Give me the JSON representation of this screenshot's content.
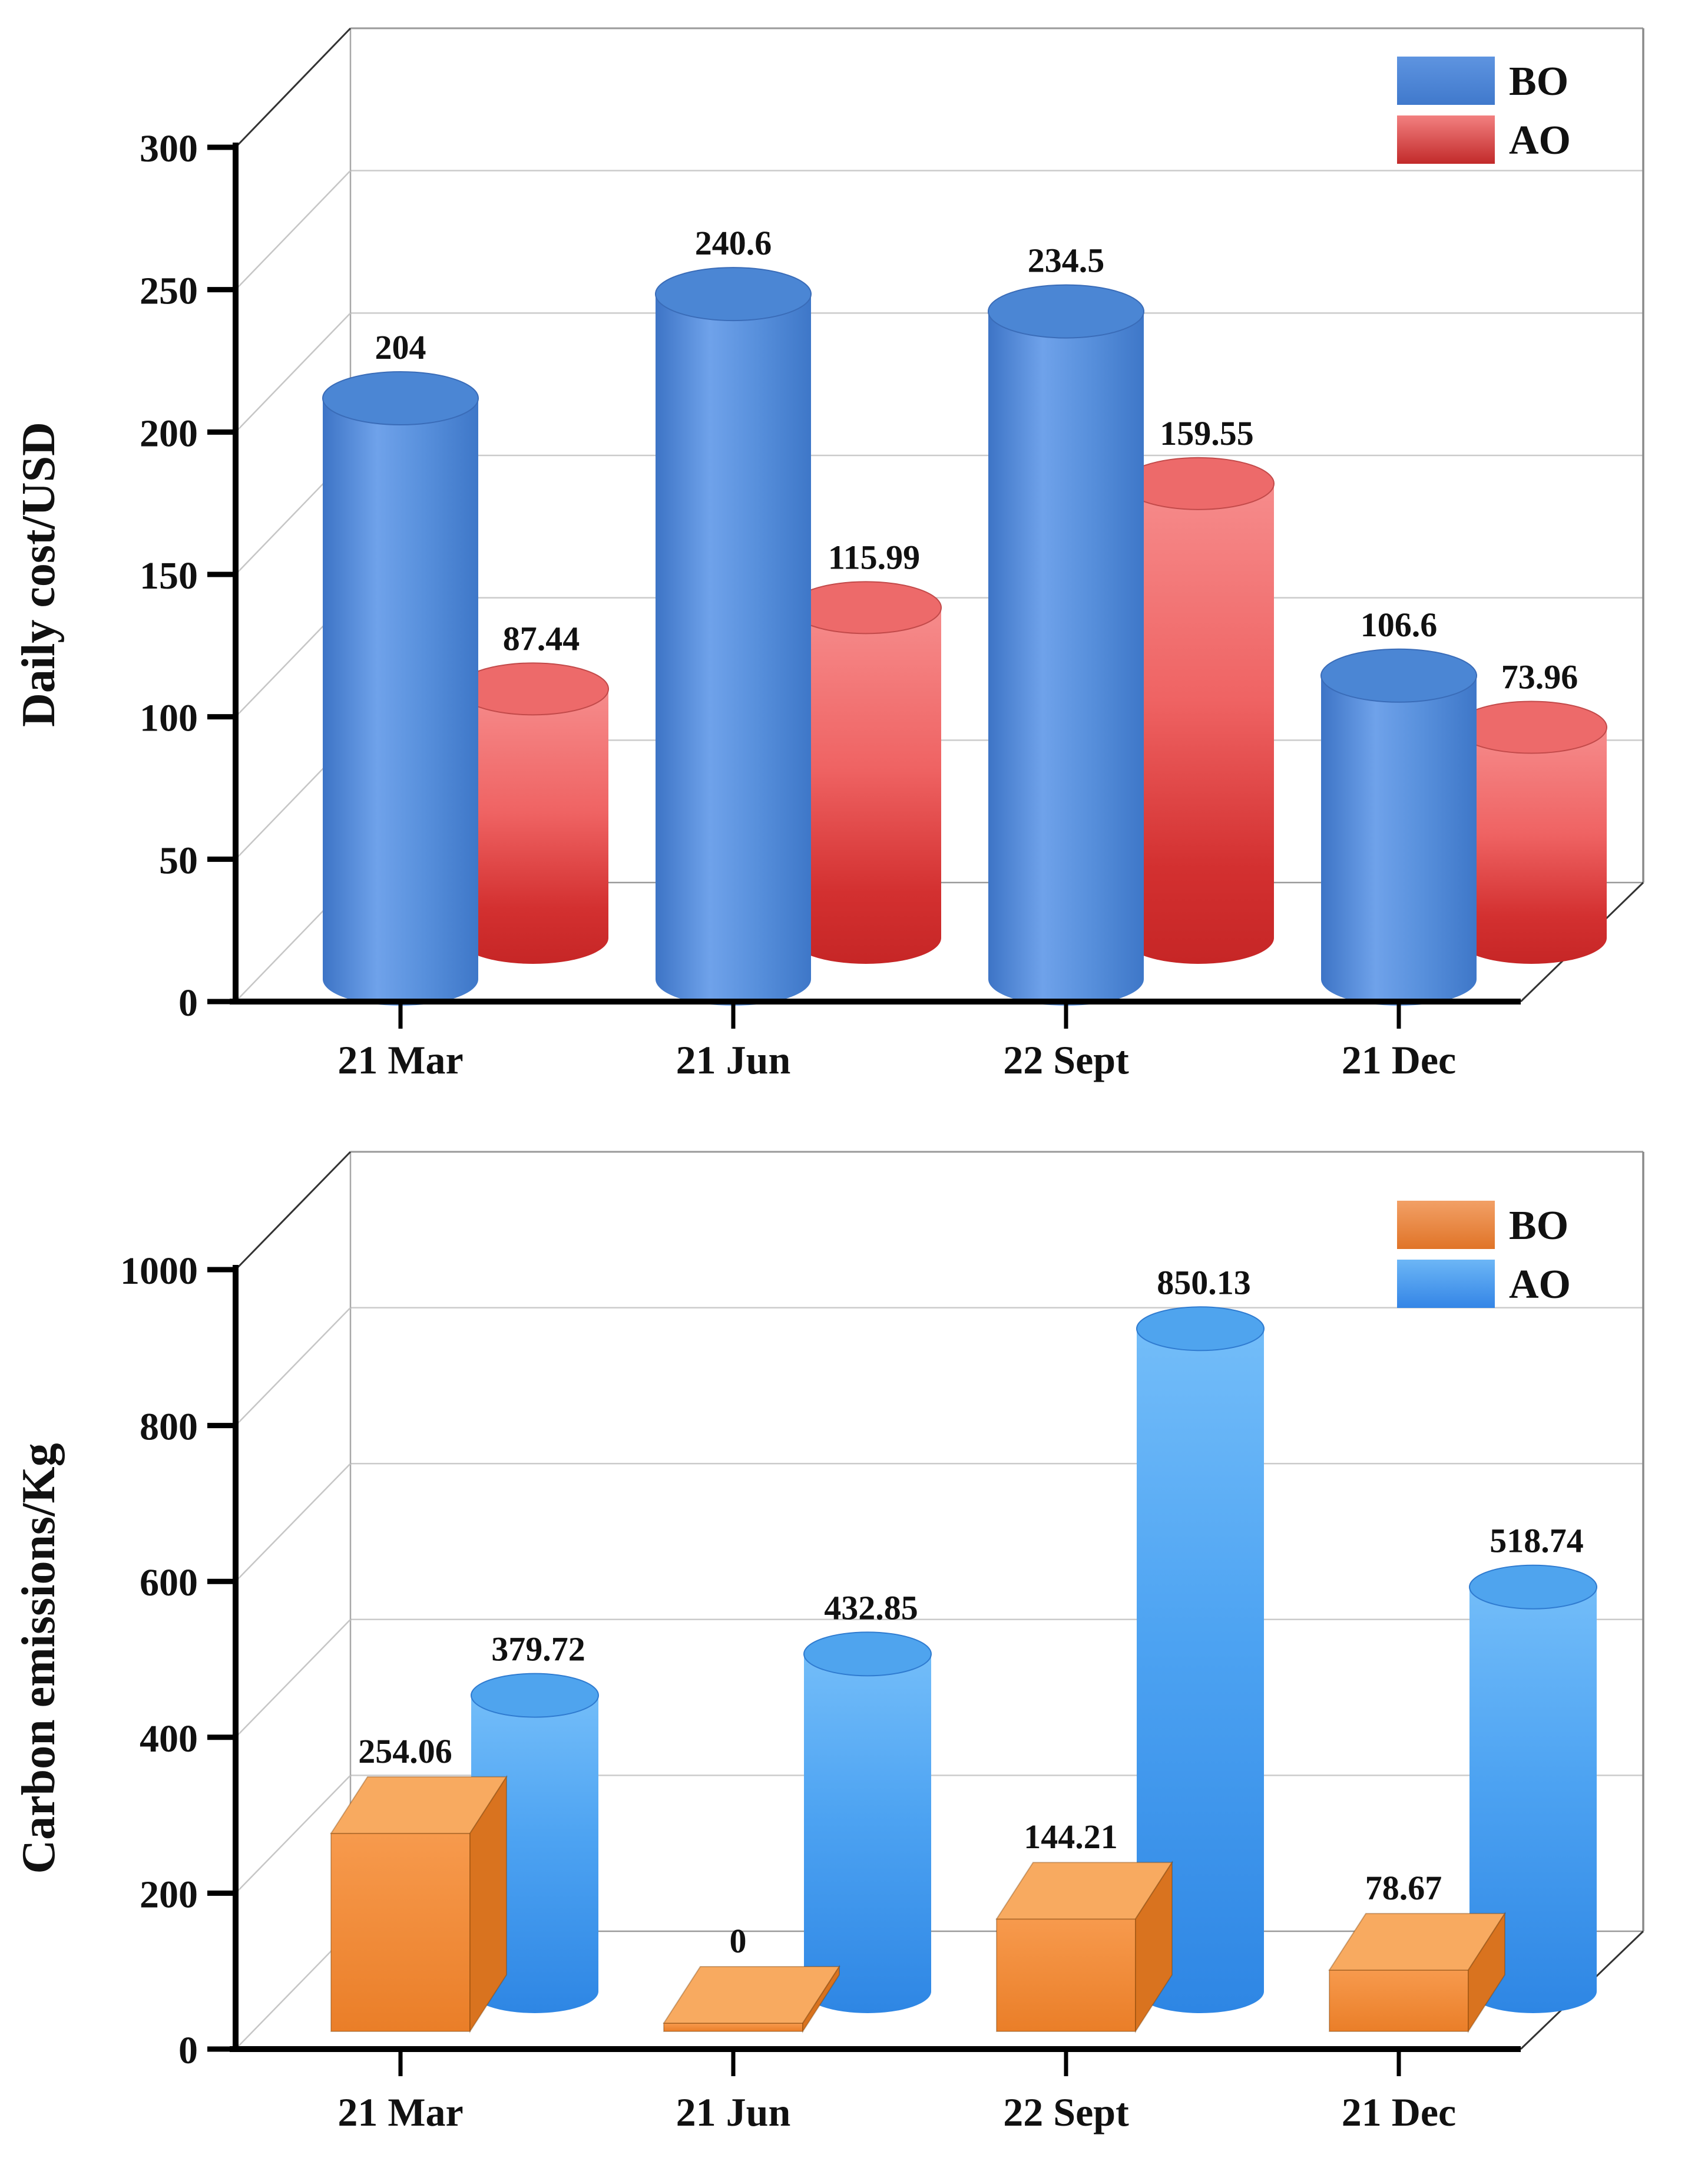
{
  "figure": {
    "background": "#ffffff",
    "panels": 2
  },
  "chart_data": [
    {
      "type": "bar",
      "projection": "3d",
      "ylabel": "Daily cost/USD",
      "categories": [
        "21 Mar",
        "21 Jun",
        "22 Sept",
        "21 Dec"
      ],
      "ylim": [
        0,
        300
      ],
      "yticks": [
        0,
        50,
        100,
        150,
        200,
        250,
        300
      ],
      "grid": true,
      "legend_position": "top-right",
      "series": [
        {
          "name": "BO",
          "shape": "cylinder",
          "color": "#4E8AD8",
          "values": [
            204,
            240.6,
            234.5,
            106.6
          ],
          "value_labels": [
            "204",
            "240.6",
            "234.5",
            "106.6"
          ]
        },
        {
          "name": "AO",
          "shape": "cylinder",
          "color": "#E04A4A",
          "values": [
            87.44,
            115.99,
            159.55,
            73.96
          ],
          "value_labels": [
            "87.44",
            "115.99",
            "159.55",
            "73.96"
          ]
        }
      ]
    },
    {
      "type": "bar",
      "projection": "3d",
      "ylabel": "Carbon emissions/Kg",
      "categories": [
        "21 Mar",
        "21 Jun",
        "22 Sept",
        "21 Dec"
      ],
      "ylim": [
        0,
        1000
      ],
      "yticks": [
        0,
        200,
        400,
        600,
        800,
        1000
      ],
      "grid": true,
      "legend_position": "top-right",
      "series": [
        {
          "name": "BO",
          "shape": "cuboid",
          "color": "#EE8433",
          "values": [
            254.06,
            0,
            144.21,
            78.67
          ],
          "value_labels": [
            "254.06",
            "0",
            "144.21",
            "78.67"
          ]
        },
        {
          "name": "AO",
          "shape": "cylinder",
          "color": "#3E97EE",
          "values": [
            379.72,
            432.85,
            850.13,
            518.74
          ],
          "value_labels": [
            "379.72",
            "432.85",
            "850.13",
            "518.74"
          ]
        }
      ]
    }
  ]
}
